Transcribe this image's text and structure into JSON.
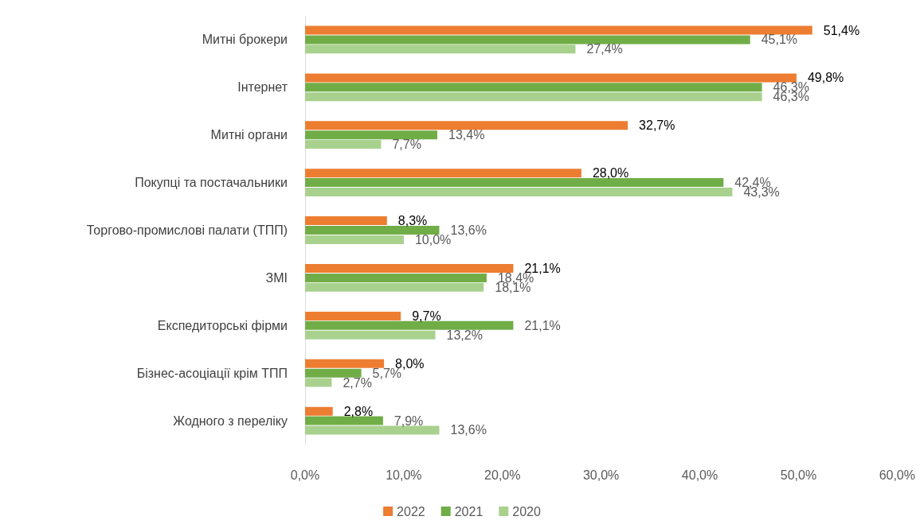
{
  "chart_data": {
    "type": "bar",
    "orientation": "horizontal",
    "categories": [
      "Митні брокери",
      "Інтернет",
      "Митні органи",
      "Покупці та постачальники",
      "Торгово-промислові палати (ТПП)",
      "ЗМІ",
      "Експедиторські фірми",
      "Бізнес-асоціації крім ТПП",
      "Жодного з переліку"
    ],
    "series": [
      {
        "name": "2022",
        "color": "#ed7d31",
        "values": [
          51.4,
          49.8,
          32.7,
          28.0,
          8.3,
          21.1,
          9.7,
          8.0,
          2.8
        ],
        "value_labels": [
          "51,4%",
          "49,8%",
          "32,7%",
          "28,0%",
          "8,3%",
          "21,1%",
          "9,7%",
          "8,0%",
          "2,8%"
        ]
      },
      {
        "name": "2021",
        "color": "#70ad47",
        "values": [
          45.1,
          46.3,
          13.4,
          42.4,
          13.6,
          18.4,
          21.1,
          5.7,
          7.9
        ],
        "value_labels": [
          "45,1%",
          "46,3%",
          "13,4%",
          "42,4%",
          "13,6%",
          "18,4%",
          "21,1%",
          "5,7%",
          "7,9%"
        ]
      },
      {
        "name": "2020",
        "color": "#a9d18e",
        "values": [
          27.4,
          46.3,
          7.7,
          43.3,
          10.0,
          18.1,
          13.2,
          2.7,
          13.6
        ],
        "value_labels": [
          "27,4%",
          "46,3%",
          "7,7%",
          "43,3%",
          "10,0%",
          "18,1%",
          "13,2%",
          "2,7%",
          "13,6%"
        ]
      }
    ],
    "xlim": [
      0,
      60
    ],
    "xticks": [
      {
        "value": 0,
        "label": "0,0%"
      },
      {
        "value": 10,
        "label": "10,0%"
      },
      {
        "value": 20,
        "label": "20,0%"
      },
      {
        "value": 30,
        "label": "30,0%"
      },
      {
        "value": 40,
        "label": "40,0%"
      },
      {
        "value": 50,
        "label": "50,0%"
      },
      {
        "value": 60,
        "label": "60,0%"
      }
    ],
    "grid": false,
    "legend": "bottom"
  }
}
